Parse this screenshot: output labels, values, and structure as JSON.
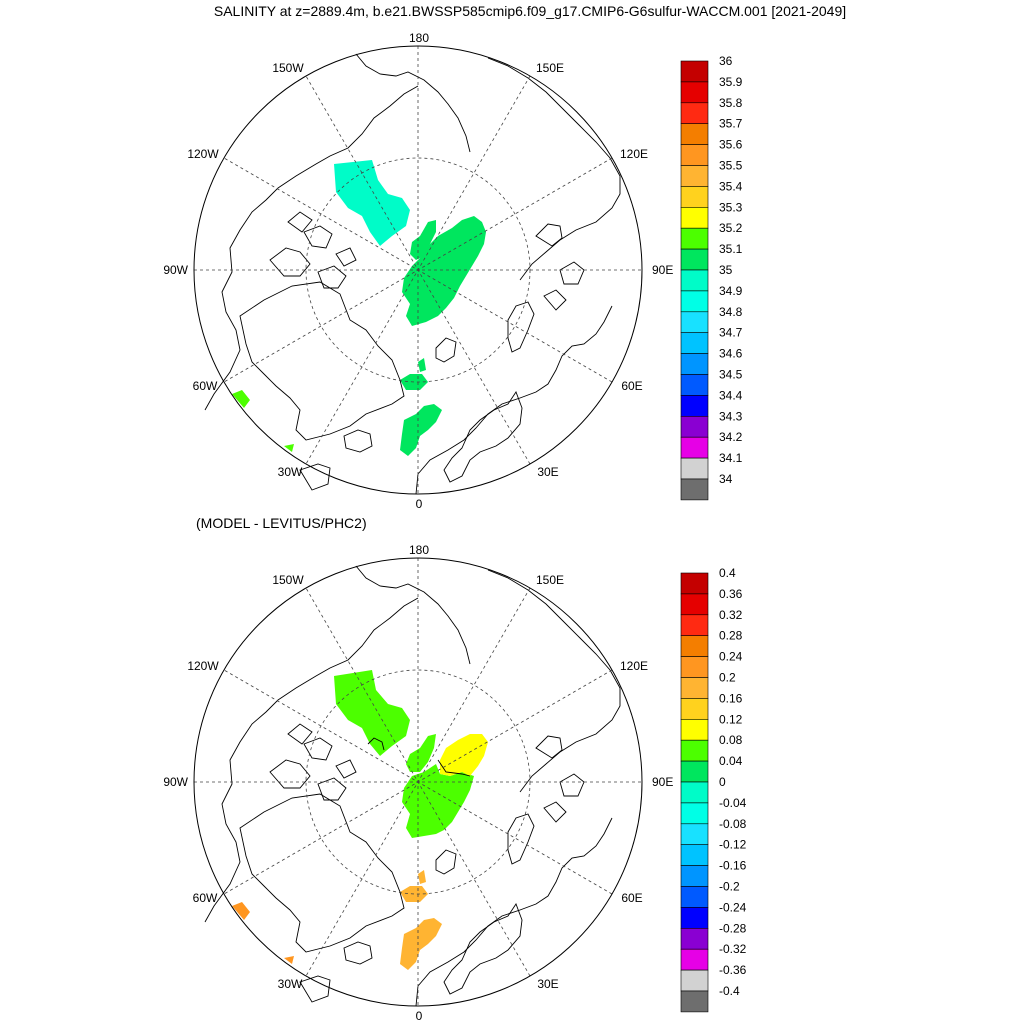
{
  "title": "SALINITY at z=2889.4m, b.e21.BWSSP585cmip6.f09_g17.CMIP6-G6sulfur-WACCM.001 [2021-2049]",
  "subtitle": "(MODEL - LEVITUS/PHC2)",
  "lon_labels": {
    "deg0": "0",
    "deg30E": "30E",
    "deg60E": "60E",
    "deg90E": "90E",
    "deg120E": "120E",
    "deg150E": "150E",
    "deg180": "180",
    "deg150W": "150W",
    "deg120W": "120W",
    "deg90W": "90W",
    "deg60W": "60W",
    "deg30W": "30W"
  },
  "map_top": {
    "colorbar": {
      "labels": [
        "36",
        "35.9",
        "35.8",
        "35.7",
        "35.6",
        "35.5",
        "35.4",
        "35.3",
        "35.2",
        "35.1",
        "35",
        "34.9",
        "34.8",
        "34.7",
        "34.6",
        "34.5",
        "34.4",
        "34.3",
        "34.2",
        "34.1",
        "34"
      ],
      "colors": [
        "#c40000",
        "#e50000",
        "#ff2a12",
        "#f47e00",
        "#ff9620",
        "#ffb432",
        "#ffd21e",
        "#ffff00",
        "#4cff00",
        "#00e65e",
        "#00fcc8",
        "#00ffe6",
        "#18e1ff",
        "#00c3ff",
        "#0095ff",
        "#005aff",
        "#0000ff",
        "#8a00d2",
        "#e600e6",
        "#d2d2d2",
        "#6e6e6e"
      ]
    }
  },
  "map_bottom": {
    "colorbar": {
      "labels": [
        "0.4",
        "0.36",
        "0.32",
        "0.28",
        "0.24",
        "0.2",
        "0.16",
        "0.12",
        "0.08",
        "0.04",
        "0",
        "-0.04",
        "-0.08",
        "-0.12",
        "-0.16",
        "-0.2",
        "-0.24",
        "-0.28",
        "-0.32",
        "-0.36",
        "-0.4"
      ],
      "colors": [
        "#c40000",
        "#e50000",
        "#ff2a12",
        "#f47e00",
        "#ff9620",
        "#ffb432",
        "#ffd21e",
        "#ffff00",
        "#4cff00",
        "#00e65e",
        "#00fcc8",
        "#00ffe6",
        "#18e1ff",
        "#00c3ff",
        "#0095ff",
        "#005aff",
        "#0000ff",
        "#8a00d2",
        "#e600e6",
        "#d2d2d2",
        "#6e6e6e"
      ]
    }
  },
  "region_colors": {
    "top_central_green": "#00e65e",
    "top_cyan": "#00fcc8",
    "top_lightgreen": "#4cff00",
    "bottom_green": "#4cff00",
    "bottom_yellow": "#ffff00",
    "bottom_orange_light": "#ffb432",
    "bottom_orange": "#ff9620",
    "coast": "#000000"
  }
}
